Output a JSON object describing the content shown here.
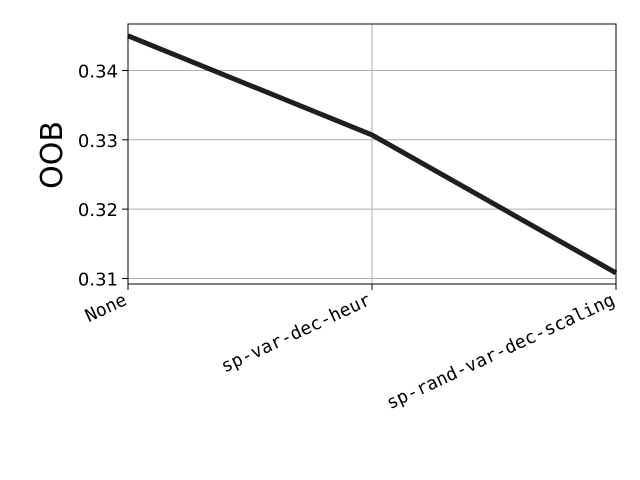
{
  "chart_data": {
    "type": "line",
    "title": "",
    "xlabel": "",
    "ylabel": "OOB",
    "categories": [
      "None",
      "sp-var-dec-heur",
      "sp-rand-var-dec-scaling"
    ],
    "series": [
      {
        "values": [
          0.345,
          0.3307,
          0.3108
        ]
      }
    ],
    "ylim": [
      0.3092,
      0.3467
    ],
    "yticks": [
      0.31,
      0.32,
      0.33,
      0.34
    ],
    "ytick_labels": [
      "0.31",
      "0.32",
      "0.33",
      "0.34"
    ],
    "grid": true,
    "legend": "none",
    "colors": {
      "line": "#1f1f1f",
      "grid": "#b0b0b0",
      "axes": "#000000"
    }
  }
}
